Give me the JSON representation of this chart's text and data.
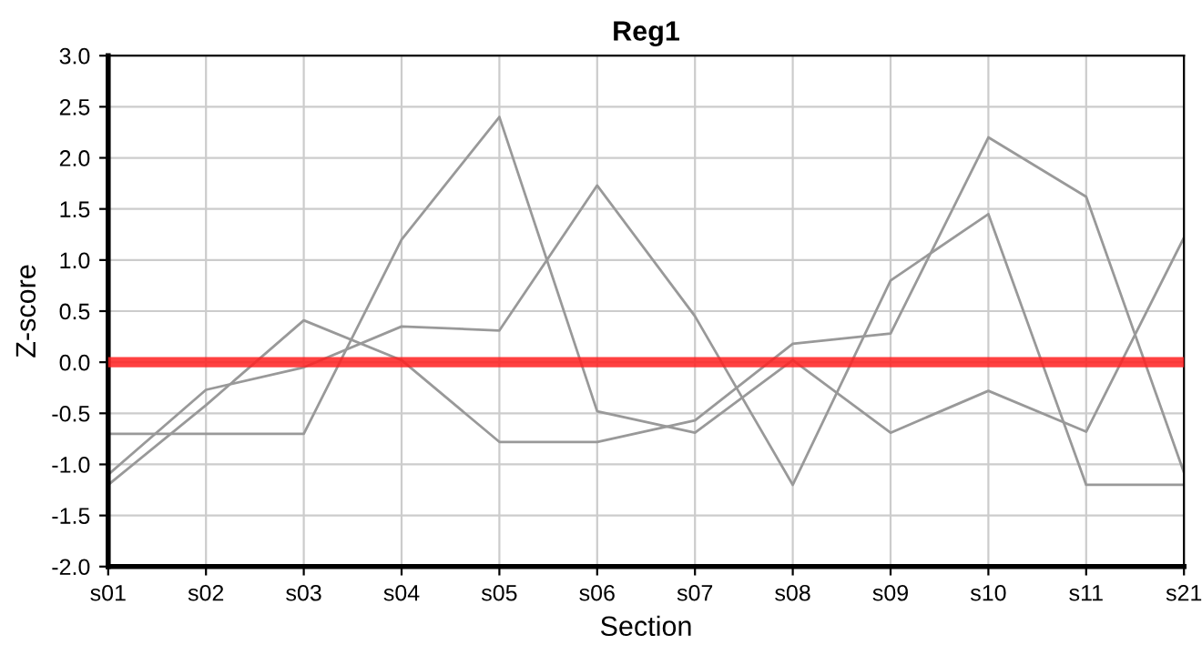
{
  "chart_data": {
    "type": "line",
    "title": "Reg1",
    "xlabel": "Section",
    "ylabel": "Z-score",
    "categories": [
      "s01",
      "s02",
      "s03",
      "s04",
      "s05",
      "s06",
      "s07",
      "s08",
      "s09",
      "s10",
      "s11",
      "s21"
    ],
    "series": [
      {
        "color": "#999999",
        "values": [
          -0.7,
          -0.7,
          -0.7,
          1.2,
          2.4,
          -0.48,
          -0.69,
          0.02,
          -0.69,
          -0.28,
          -0.68,
          1.22
        ]
      },
      {
        "color": "#999999",
        "values": [
          -1.2,
          -0.42,
          0.41,
          0.02,
          -0.78,
          -0.78,
          -0.57,
          0.18,
          0.28,
          2.2,
          1.62,
          -1.08
        ]
      },
      {
        "color": "#999999",
        "values": [
          -1.1,
          -0.27,
          -0.05,
          0.35,
          0.31,
          1.73,
          0.45,
          -1.2,
          0.8,
          1.45,
          -1.2,
          -1.2
        ]
      }
    ],
    "ref_lines": [
      {
        "axis": "y",
        "value": 0,
        "color": "#ff2020"
      }
    ],
    "ylim": [
      -2.0,
      3.0
    ],
    "yticks": [
      {
        "value": -2.0,
        "label": "-2.0"
      },
      {
        "value": -1.5,
        "label": "-1.5"
      },
      {
        "value": -1.0,
        "label": "-1.0"
      },
      {
        "value": -0.5,
        "label": "-0.5"
      },
      {
        "value": 0.0,
        "label": "0.0"
      },
      {
        "value": 0.5,
        "label": "0.5"
      },
      {
        "value": 1.0,
        "label": "1.0"
      },
      {
        "value": 1.5,
        "label": "1.5"
      },
      {
        "value": 2.0,
        "label": "2.0"
      },
      {
        "value": 2.5,
        "label": "2.5"
      },
      {
        "value": 3.0,
        "label": "3.0"
      }
    ],
    "grid": true,
    "legend": false,
    "marker": "none",
    "line_style": "solid"
  }
}
